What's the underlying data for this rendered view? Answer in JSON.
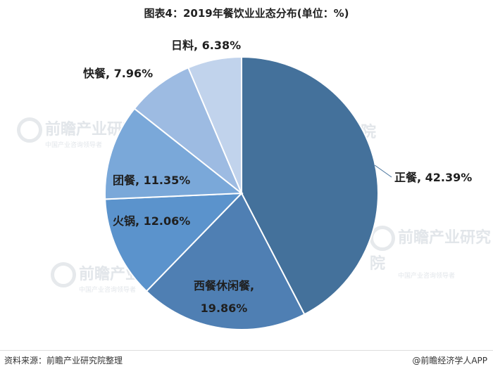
{
  "title": "图表4：2019年餐饮业业态分布(单位：%)",
  "chart_data": {
    "type": "pie",
    "title": "图表4：2019年餐饮业业态分布(单位：%)",
    "slices": [
      {
        "label": "正餐",
        "value": 42.39,
        "text": "正餐, 42.39%",
        "color": "#44719b"
      },
      {
        "label": "西餐休闲餐",
        "value": 19.86,
        "text": [
          "西餐休闲餐,",
          "19.86%"
        ],
        "color": "#4f7fb3"
      },
      {
        "label": "火锅",
        "value": 12.06,
        "text": "火锅, 12.06%",
        "color": "#5b93cc"
      },
      {
        "label": "团餐",
        "value": 11.35,
        "text": "团餐, 11.35%",
        "color": "#7aa8d9"
      },
      {
        "label": "快餐",
        "value": 7.96,
        "text": "快餐, 7.96%",
        "color": "#9dbbe2"
      },
      {
        "label": "日料",
        "value": 6.38,
        "text": "日料, 6.38%",
        "color": "#c1d3ec"
      }
    ]
  },
  "watermark": {
    "brand": "前瞻产业研究院",
    "sub": "中国产业咨询领导者"
  },
  "footer": {
    "source": "资料来源：前瞻产业研究院整理",
    "brand": "@前瞻经济学人APP"
  }
}
